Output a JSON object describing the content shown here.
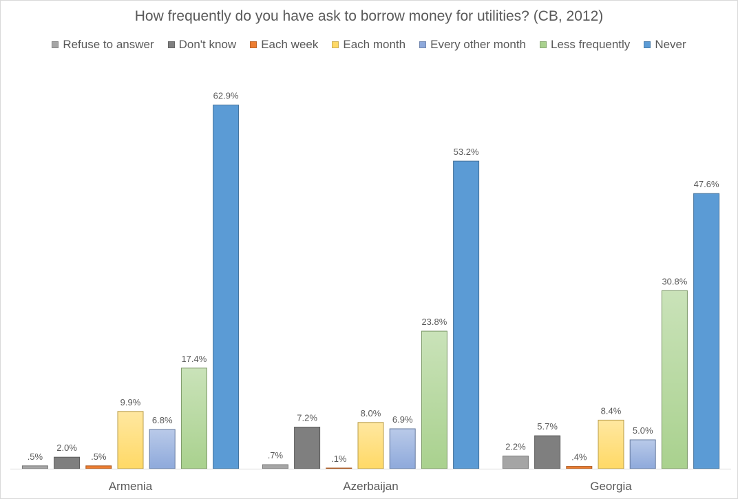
{
  "chart_data": {
    "type": "bar",
    "title": "How frequently do you have ask to borrow money for utilities? (CB, 2012)",
    "categories": [
      "Armenia",
      "Azerbaijan",
      "Georgia"
    ],
    "ylim": [
      0,
      66
    ],
    "grid": false,
    "legend_position": "top",
    "series": [
      {
        "name": "Refuse to answer",
        "color": "#a5a5a5",
        "values": [
          0.5,
          0.7,
          2.2
        ],
        "labels": [
          ".5%",
          ".7%",
          "2.2%"
        ]
      },
      {
        "name": "Don't know",
        "color": "#7f7f7f",
        "values": [
          2.0,
          7.2,
          5.7
        ],
        "labels": [
          "2.0%",
          "7.2%",
          "5.7%"
        ]
      },
      {
        "name": "Each week",
        "color": "#ed7d31",
        "values": [
          0.5,
          0.1,
          0.4
        ],
        "labels": [
          ".5%",
          ".1%",
          ".4%"
        ]
      },
      {
        "name": "Each month",
        "color": "#ffd966",
        "values": [
          9.9,
          8.0,
          8.4
        ],
        "labels": [
          "9.9%",
          "8.0%",
          "8.4%"
        ]
      },
      {
        "name": "Every other month",
        "color": "#8ea9db",
        "values": [
          6.8,
          6.9,
          5.0
        ],
        "labels": [
          "6.8%",
          "6.9%",
          "5.0%"
        ]
      },
      {
        "name": "Less frequently",
        "color": "#a9d18e",
        "values": [
          17.4,
          23.8,
          30.8
        ],
        "labels": [
          "17.4%",
          "23.8%",
          "30.8%"
        ]
      },
      {
        "name": "Never",
        "color": "#5b9bd5",
        "values": [
          62.9,
          53.2,
          47.6
        ],
        "labels": [
          "62.9%",
          "53.2%",
          "47.6%"
        ]
      }
    ]
  }
}
